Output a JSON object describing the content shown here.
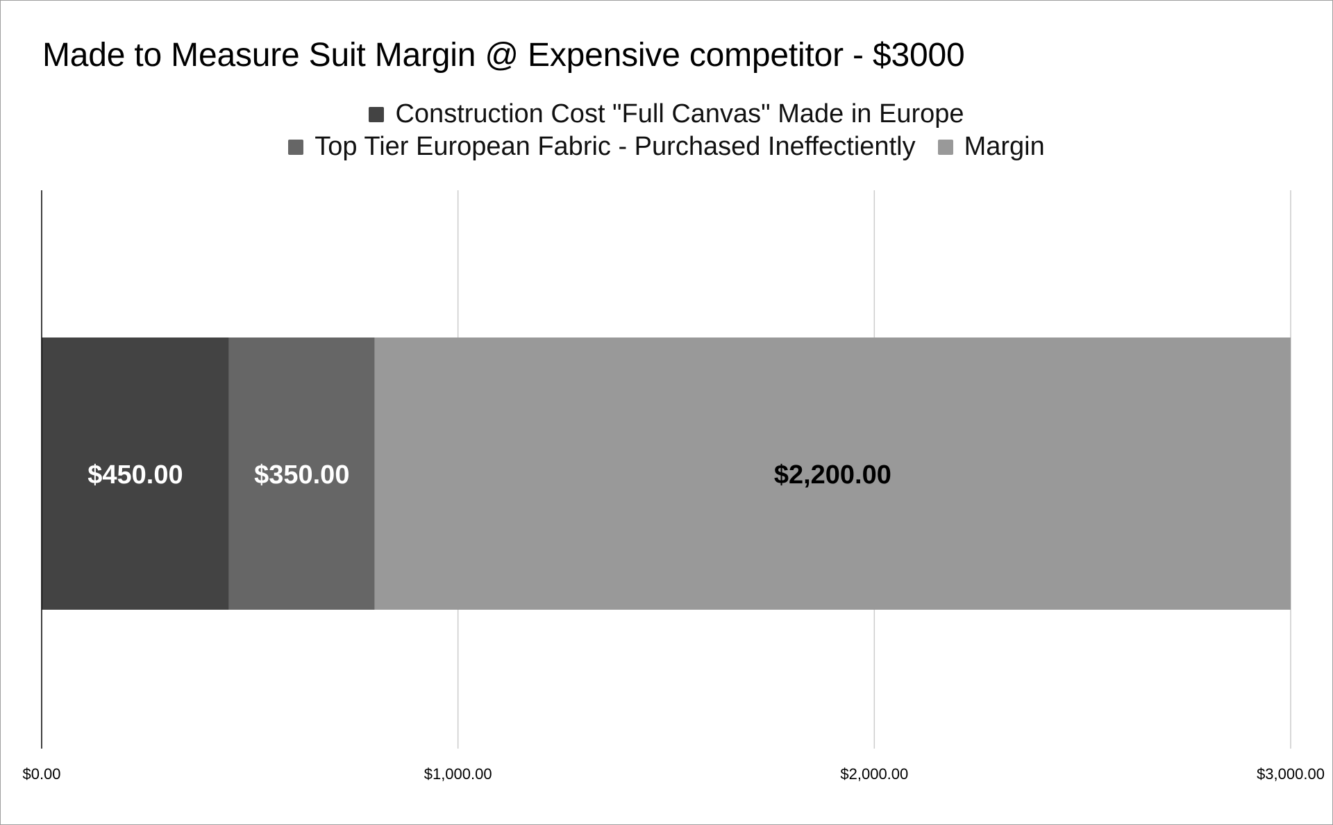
{
  "chart_data": {
    "type": "bar",
    "orientation": "horizontal",
    "stacked": true,
    "title": "Made to Measure Suit Margin @ Expensive competitor - $3000",
    "categories": [
      ""
    ],
    "series": [
      {
        "name": "Construction Cost \"Full Canvas\" Made in Europe",
        "values": [
          450
        ],
        "color": "#434343",
        "label": "$450.00",
        "label_color": "#ffffff"
      },
      {
        "name": "Top Tier European Fabric - Purchased Ineffectiently",
        "values": [
          350
        ],
        "color": "#666666",
        "label": "$350.00",
        "label_color": "#ffffff"
      },
      {
        "name": "Margin",
        "values": [
          2200
        ],
        "color": "#999999",
        "label": "$2,200.00",
        "label_color": "#000000"
      }
    ],
    "xlim": [
      0,
      3000
    ],
    "xticks": [
      0,
      1000,
      2000,
      3000
    ],
    "xtick_labels": [
      "$0.00",
      "$1,000.00",
      "$2,000.00",
      "$3,000.00"
    ],
    "grid": true,
    "legend_position": "top"
  }
}
